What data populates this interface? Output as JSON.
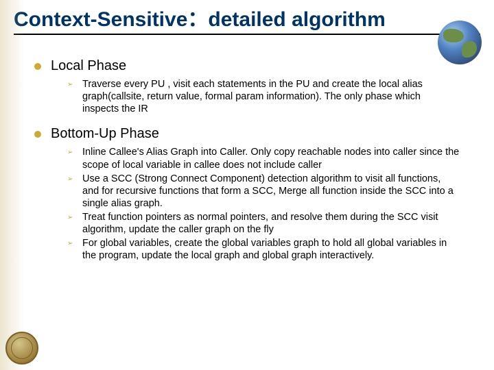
{
  "title": "Context-Sensitive：detailed algorithm",
  "sections": [
    {
      "heading": "Local Phase",
      "items": [
        "Traverse every PU , visit each statements in the PU and create the local alias graph(callsite, return value, formal param information). The only phase which inspects the IR"
      ]
    },
    {
      "heading": "Bottom-Up Phase",
      "items": [
        "Inline Callee's Alias Graph into Caller. Only copy reachable nodes into caller since the scope of local variable in callee does not include caller",
        "Use a SCC (Strong Connect Component) detection algorithm to visit all functions, and for recursive functions that form a SCC, Merge all function inside the SCC into a single alias graph.",
        "Treat function pointers as normal pointers, and resolve them during the SCC visit algorithm, update the caller graph on the fly",
        " For global variables, create the global variables graph to hold all global variables in the program, update the local graph and global graph interactively."
      ]
    }
  ],
  "colors": {
    "title_color": "#003366",
    "bullet_gold": "#ccaa33",
    "text_color": "#000000",
    "background": "#ffffff"
  },
  "typography": {
    "title_fontsize": 30,
    "level1_fontsize": 20,
    "level2_fontsize": 14.5
  }
}
